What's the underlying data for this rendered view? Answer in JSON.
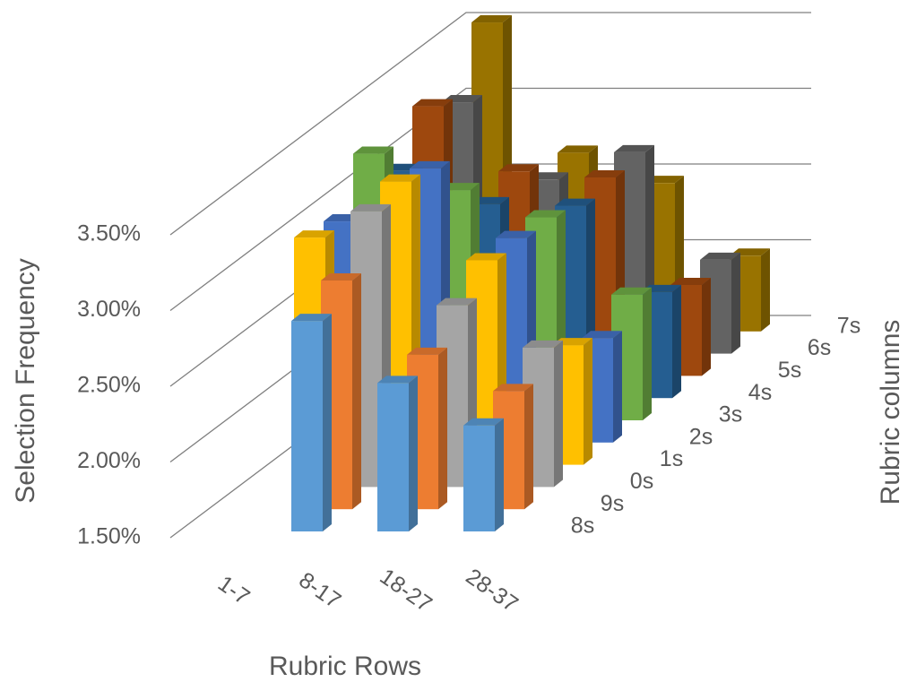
{
  "chart_data": {
    "type": "bar3d",
    "x_label": "Rubric Rows",
    "y_label": "Selection Frequency",
    "z_label": "Rubric columns",
    "categories": [
      "1-7",
      "8-17",
      "18-27",
      "28-37"
    ],
    "ylim": [
      1.5,
      3.5
    ],
    "yticks": [
      {
        "value": 1.5,
        "label": "1.50%"
      },
      {
        "value": 2.0,
        "label": "2.00%"
      },
      {
        "value": 2.5,
        "label": "2.50%"
      },
      {
        "value": 3.0,
        "label": "3.00%"
      },
      {
        "value": 3.5,
        "label": "3.50%"
      }
    ],
    "grid": true,
    "series": [
      {
        "name": "8s",
        "color": "#5b9bd5",
        "values": [
          null,
          2.89,
          2.48,
          2.2
        ]
      },
      {
        "name": "9s",
        "color": "#ed7d31",
        "values": [
          null,
          3.01,
          2.52,
          2.28
        ]
      },
      {
        "name": "0s",
        "color": "#a5a5a5",
        "values": [
          null,
          3.32,
          2.7,
          2.42
        ]
      },
      {
        "name": "1s",
        "color": "#ffc000",
        "values": [
          3.0,
          3.37,
          2.85,
          2.29
        ]
      },
      {
        "name": "2s",
        "color": "#4472c4",
        "values": [
          2.96,
          3.31,
          2.85,
          2.19
        ]
      },
      {
        "name": "3s",
        "color": "#70ad47",
        "values": [
          3.26,
          3.02,
          2.84,
          2.33
        ]
      },
      {
        "name": "4s",
        "color": "#255e91",
        "values": [
          3.0,
          2.78,
          2.77,
          2.2
        ]
      },
      {
        "name": "5s",
        "color": "#9e480e",
        "values": [
          3.28,
          2.85,
          2.81,
          2.1
        ]
      },
      {
        "name": "6s",
        "color": "#636363",
        "values": [
          3.16,
          2.65,
          2.83,
          2.12
        ]
      },
      {
        "name": "7s",
        "color": "#997300",
        "values": [
          3.54,
          2.68,
          2.48,
          2.0
        ]
      }
    ]
  }
}
